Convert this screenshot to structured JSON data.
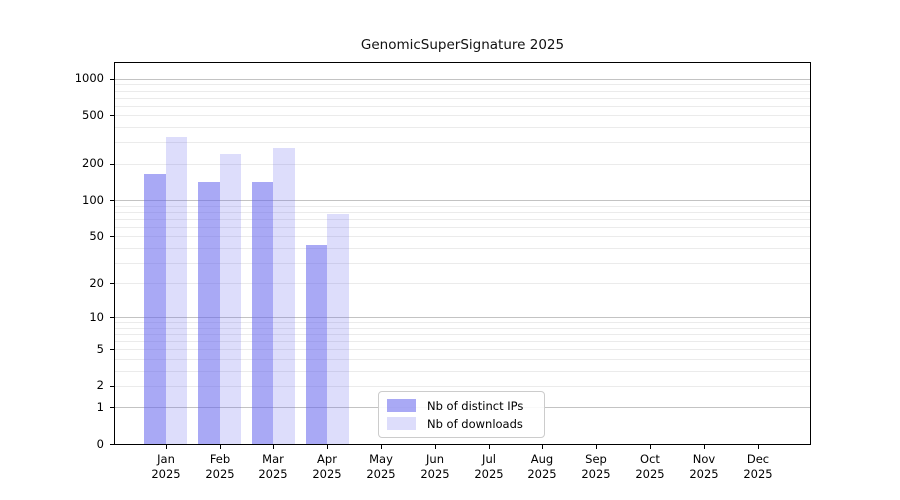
{
  "figure": {
    "title": "GenomicSuperSignature 2025"
  },
  "chart_data": {
    "type": "bar",
    "title": "GenomicSuperSignature 2025",
    "categories": [
      "Jan 2025",
      "Feb 2025",
      "Mar 2025",
      "Apr 2025",
      "May 2025",
      "Jun 2025",
      "Jul 2025",
      "Aug 2025",
      "Sep 2025",
      "Oct 2025",
      "Nov 2025",
      "Dec 2025"
    ],
    "series": [
      {
        "name": "Nb of distinct IPs",
        "color": "rgba(99,99,237,0.55)",
        "values": [
          165,
          140,
          140,
          42,
          null,
          null,
          null,
          null,
          null,
          null,
          null,
          null
        ]
      },
      {
        "name": "Nb of downloads",
        "color": "rgba(99,99,237,0.22)",
        "values": [
          335,
          240,
          268,
          76,
          null,
          null,
          null,
          null,
          null,
          null,
          null,
          null
        ]
      }
    ],
    "xlabel": "",
    "ylabel": "",
    "yscale": "log1p",
    "ylim": [
      0,
      1370
    ],
    "y_ticks": [
      1000,
      500,
      200,
      100,
      50,
      20,
      10,
      5,
      2,
      1,
      0
    ],
    "grid": {
      "on": true,
      "major_levels": [
        1,
        10,
        100,
        1000
      ],
      "minor_subs": [
        2,
        3,
        4,
        5,
        6,
        7,
        8,
        9
      ],
      "major_color": "#c3c3c3",
      "minor_color": "#ebebeb"
    },
    "legend": {
      "position": "lower center-left inside",
      "entries": [
        "Nb of distinct IPs",
        "Nb of downloads"
      ]
    }
  }
}
